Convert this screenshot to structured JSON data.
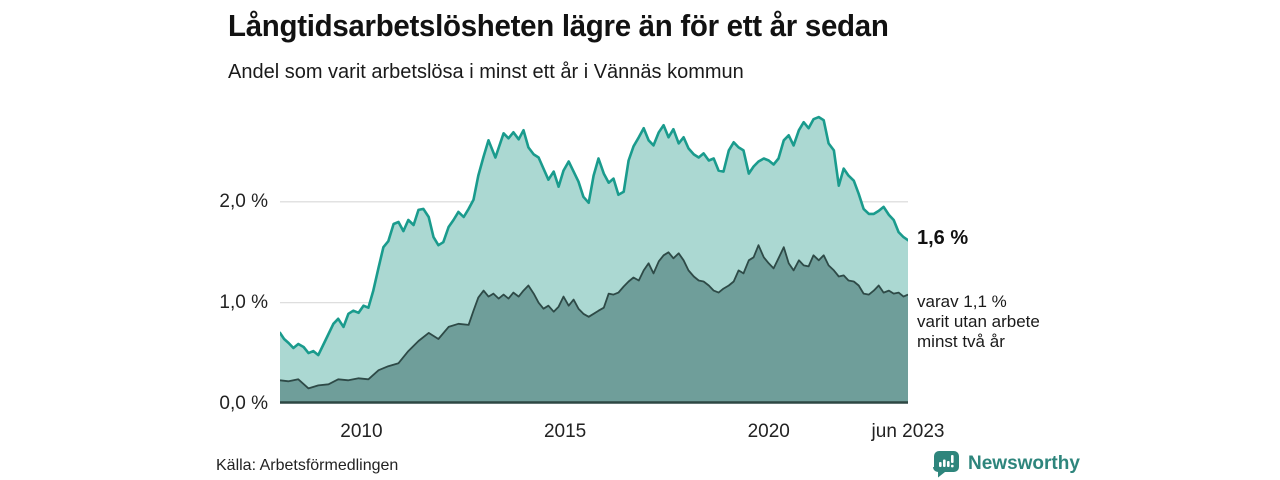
{
  "header": {
    "title": "Långtidsarbetslösheten lägre än för ett år sedan",
    "subtitle": "Andel som varit arbetslösa i minst ett år i Vännäs kommun"
  },
  "annotations": {
    "latest_total": "1,6 %",
    "latest_two_year_note": "varav 1,1 %\nvarit utan arbete\nminst två år"
  },
  "footer": {
    "source": "Källa: Arbetsförmedlingen",
    "brand": "Newsworthy"
  },
  "colors": {
    "line_total": "#1a9b8d",
    "fill_total": "#abd8d2",
    "line_two_year": "#2e4a47",
    "fill_two_year": "#6f9e9a",
    "grid": "#d9d9d9",
    "axis_line": "#2d4743",
    "brand_teal": "#2e857c",
    "icon_bar_color": "#ffffff"
  },
  "chart_data": {
    "type": "area",
    "title": "Långtidsarbetslösheten lägre än för ett år sedan",
    "subtitle": "Andel som varit arbetslösa i minst ett år i Vännäs kommun",
    "unit": "%",
    "grid": true,
    "legend_position": "none",
    "x_range": [
      2008.0,
      2023.42
    ],
    "ylim": [
      0,
      3.01
    ],
    "y_ticks": [
      {
        "label": "0,0 %",
        "value": 0
      },
      {
        "label": "1,0 %",
        "value": 1
      },
      {
        "label": "2,0 %",
        "value": 2
      }
    ],
    "x_ticks": [
      {
        "label": "2010",
        "year": 2010
      },
      {
        "label": "2015",
        "year": 2015
      },
      {
        "label": "2020",
        "year": 2020
      },
      {
        "label": "jun 2023",
        "year": 2023.42
      }
    ],
    "series": [
      {
        "name": "Arbetslösa minst ett år",
        "end_label": "1,6 %",
        "end_value": 1.6,
        "points": [
          [
            2008.0,
            0.7
          ],
          [
            2008.1,
            0.64
          ],
          [
            2008.21,
            0.6
          ],
          [
            2008.33,
            0.55
          ],
          [
            2008.45,
            0.59
          ],
          [
            2008.58,
            0.56
          ],
          [
            2008.7,
            0.5
          ],
          [
            2008.82,
            0.52
          ],
          [
            2008.94,
            0.48
          ],
          [
            2009.12,
            0.63
          ],
          [
            2009.31,
            0.79
          ],
          [
            2009.43,
            0.84
          ],
          [
            2009.56,
            0.76
          ],
          [
            2009.68,
            0.89
          ],
          [
            2009.8,
            0.92
          ],
          [
            2009.93,
            0.9
          ],
          [
            2010.05,
            0.97
          ],
          [
            2010.17,
            0.95
          ],
          [
            2010.29,
            1.12
          ],
          [
            2010.42,
            1.35
          ],
          [
            2010.54,
            1.55
          ],
          [
            2010.66,
            1.61
          ],
          [
            2010.79,
            1.78
          ],
          [
            2010.91,
            1.8
          ],
          [
            2011.03,
            1.71
          ],
          [
            2011.15,
            1.82
          ],
          [
            2011.28,
            1.77
          ],
          [
            2011.4,
            1.92
          ],
          [
            2011.52,
            1.93
          ],
          [
            2011.65,
            1.85
          ],
          [
            2011.77,
            1.65
          ],
          [
            2011.89,
            1.57
          ],
          [
            2012.01,
            1.6
          ],
          [
            2012.14,
            1.75
          ],
          [
            2012.26,
            1.82
          ],
          [
            2012.38,
            1.9
          ],
          [
            2012.51,
            1.85
          ],
          [
            2012.63,
            1.93
          ],
          [
            2012.75,
            2.02
          ],
          [
            2012.87,
            2.26
          ],
          [
            2013.0,
            2.45
          ],
          [
            2013.12,
            2.61
          ],
          [
            2013.29,
            2.44
          ],
          [
            2013.49,
            2.68
          ],
          [
            2013.61,
            2.63
          ],
          [
            2013.73,
            2.69
          ],
          [
            2013.86,
            2.62
          ],
          [
            2013.98,
            2.71
          ],
          [
            2014.1,
            2.54
          ],
          [
            2014.23,
            2.47
          ],
          [
            2014.35,
            2.44
          ],
          [
            2014.47,
            2.33
          ],
          [
            2014.59,
            2.22
          ],
          [
            2014.72,
            2.3
          ],
          [
            2014.84,
            2.15
          ],
          [
            2014.96,
            2.31
          ],
          [
            2015.09,
            2.4
          ],
          [
            2015.21,
            2.3
          ],
          [
            2015.33,
            2.2
          ],
          [
            2015.45,
            2.05
          ],
          [
            2015.58,
            1.99
          ],
          [
            2015.7,
            2.26
          ],
          [
            2015.82,
            2.43
          ],
          [
            2015.95,
            2.28
          ],
          [
            2016.07,
            2.19
          ],
          [
            2016.19,
            2.23
          ],
          [
            2016.31,
            2.07
          ],
          [
            2016.44,
            2.1
          ],
          [
            2016.56,
            2.41
          ],
          [
            2016.68,
            2.55
          ],
          [
            2016.81,
            2.64
          ],
          [
            2016.93,
            2.73
          ],
          [
            2017.05,
            2.61
          ],
          [
            2017.17,
            2.56
          ],
          [
            2017.3,
            2.69
          ],
          [
            2017.42,
            2.76
          ],
          [
            2017.54,
            2.64
          ],
          [
            2017.66,
            2.72
          ],
          [
            2017.79,
            2.58
          ],
          [
            2017.91,
            2.64
          ],
          [
            2018.03,
            2.53
          ],
          [
            2018.16,
            2.47
          ],
          [
            2018.28,
            2.44
          ],
          [
            2018.4,
            2.48
          ],
          [
            2018.53,
            2.41
          ],
          [
            2018.65,
            2.43
          ],
          [
            2018.77,
            2.31
          ],
          [
            2018.89,
            2.3
          ],
          [
            2019.02,
            2.51
          ],
          [
            2019.14,
            2.59
          ],
          [
            2019.26,
            2.54
          ],
          [
            2019.38,
            2.51
          ],
          [
            2019.51,
            2.28
          ],
          [
            2019.63,
            2.35
          ],
          [
            2019.75,
            2.4
          ],
          [
            2019.88,
            2.43
          ],
          [
            2020.0,
            2.41
          ],
          [
            2020.12,
            2.37
          ],
          [
            2020.24,
            2.43
          ],
          [
            2020.37,
            2.61
          ],
          [
            2020.49,
            2.66
          ],
          [
            2020.61,
            2.56
          ],
          [
            2020.74,
            2.71
          ],
          [
            2020.86,
            2.79
          ],
          [
            2020.98,
            2.73
          ],
          [
            2021.1,
            2.82
          ],
          [
            2021.23,
            2.84
          ],
          [
            2021.35,
            2.81
          ],
          [
            2021.47,
            2.58
          ],
          [
            2021.6,
            2.51
          ],
          [
            2021.72,
            2.16
          ],
          [
            2021.84,
            2.33
          ],
          [
            2021.96,
            2.26
          ],
          [
            2022.09,
            2.21
          ],
          [
            2022.21,
            2.08
          ],
          [
            2022.33,
            1.93
          ],
          [
            2022.46,
            1.88
          ],
          [
            2022.58,
            1.88
          ],
          [
            2022.7,
            1.91
          ],
          [
            2022.82,
            1.95
          ],
          [
            2022.95,
            1.87
          ],
          [
            2023.07,
            1.82
          ],
          [
            2023.19,
            1.7
          ],
          [
            2023.31,
            1.65
          ],
          [
            2023.42,
            1.62
          ]
        ]
      },
      {
        "name": "varav utan arbete minst två år",
        "end_label": "varav 1,1 %",
        "end_value": 1.1,
        "points": [
          [
            2008.0,
            0.23
          ],
          [
            2008.21,
            0.22
          ],
          [
            2008.45,
            0.24
          ],
          [
            2008.7,
            0.15
          ],
          [
            2008.94,
            0.18
          ],
          [
            2009.19,
            0.19
          ],
          [
            2009.43,
            0.24
          ],
          [
            2009.68,
            0.23
          ],
          [
            2009.93,
            0.25
          ],
          [
            2010.17,
            0.24
          ],
          [
            2010.42,
            0.33
          ],
          [
            2010.66,
            0.37
          ],
          [
            2010.91,
            0.4
          ],
          [
            2011.15,
            0.52
          ],
          [
            2011.4,
            0.62
          ],
          [
            2011.65,
            0.7
          ],
          [
            2011.89,
            0.64
          ],
          [
            2012.14,
            0.76
          ],
          [
            2012.38,
            0.79
          ],
          [
            2012.63,
            0.78
          ],
          [
            2012.75,
            0.92
          ],
          [
            2012.87,
            1.05
          ],
          [
            2013.0,
            1.12
          ],
          [
            2013.12,
            1.06
          ],
          [
            2013.24,
            1.09
          ],
          [
            2013.37,
            1.04
          ],
          [
            2013.49,
            1.08
          ],
          [
            2013.61,
            1.04
          ],
          [
            2013.73,
            1.1
          ],
          [
            2013.86,
            1.06
          ],
          [
            2013.98,
            1.12
          ],
          [
            2014.1,
            1.17
          ],
          [
            2014.23,
            1.09
          ],
          [
            2014.35,
            1.0
          ],
          [
            2014.47,
            0.94
          ],
          [
            2014.59,
            0.97
          ],
          [
            2014.72,
            0.91
          ],
          [
            2014.84,
            0.96
          ],
          [
            2014.96,
            1.06
          ],
          [
            2015.09,
            0.97
          ],
          [
            2015.21,
            1.03
          ],
          [
            2015.33,
            0.94
          ],
          [
            2015.45,
            0.89
          ],
          [
            2015.58,
            0.86
          ],
          [
            2015.7,
            0.89
          ],
          [
            2015.82,
            0.92
          ],
          [
            2015.95,
            0.95
          ],
          [
            2016.07,
            1.09
          ],
          [
            2016.19,
            1.08
          ],
          [
            2016.31,
            1.1
          ],
          [
            2016.44,
            1.16
          ],
          [
            2016.56,
            1.21
          ],
          [
            2016.68,
            1.25
          ],
          [
            2016.81,
            1.22
          ],
          [
            2016.93,
            1.32
          ],
          [
            2017.05,
            1.39
          ],
          [
            2017.17,
            1.29
          ],
          [
            2017.3,
            1.41
          ],
          [
            2017.42,
            1.47
          ],
          [
            2017.54,
            1.5
          ],
          [
            2017.66,
            1.44
          ],
          [
            2017.79,
            1.49
          ],
          [
            2017.91,
            1.42
          ],
          [
            2018.03,
            1.32
          ],
          [
            2018.16,
            1.26
          ],
          [
            2018.28,
            1.22
          ],
          [
            2018.4,
            1.21
          ],
          [
            2018.53,
            1.17
          ],
          [
            2018.65,
            1.12
          ],
          [
            2018.77,
            1.1
          ],
          [
            2018.89,
            1.14
          ],
          [
            2019.02,
            1.17
          ],
          [
            2019.14,
            1.21
          ],
          [
            2019.26,
            1.32
          ],
          [
            2019.38,
            1.29
          ],
          [
            2019.51,
            1.42
          ],
          [
            2019.63,
            1.45
          ],
          [
            2019.75,
            1.57
          ],
          [
            2019.88,
            1.45
          ],
          [
            2020.0,
            1.39
          ],
          [
            2020.12,
            1.34
          ],
          [
            2020.24,
            1.44
          ],
          [
            2020.37,
            1.55
          ],
          [
            2020.49,
            1.39
          ],
          [
            2020.61,
            1.32
          ],
          [
            2020.74,
            1.42
          ],
          [
            2020.86,
            1.37
          ],
          [
            2020.98,
            1.36
          ],
          [
            2021.1,
            1.47
          ],
          [
            2021.23,
            1.42
          ],
          [
            2021.35,
            1.47
          ],
          [
            2021.47,
            1.37
          ],
          [
            2021.6,
            1.32
          ],
          [
            2021.72,
            1.26
          ],
          [
            2021.84,
            1.27
          ],
          [
            2021.96,
            1.22
          ],
          [
            2022.09,
            1.21
          ],
          [
            2022.21,
            1.17
          ],
          [
            2022.33,
            1.09
          ],
          [
            2022.46,
            1.08
          ],
          [
            2022.58,
            1.12
          ],
          [
            2022.7,
            1.17
          ],
          [
            2022.82,
            1.1
          ],
          [
            2022.95,
            1.12
          ],
          [
            2023.07,
            1.09
          ],
          [
            2023.19,
            1.1
          ],
          [
            2023.31,
            1.06
          ],
          [
            2023.42,
            1.08
          ]
        ]
      }
    ]
  }
}
